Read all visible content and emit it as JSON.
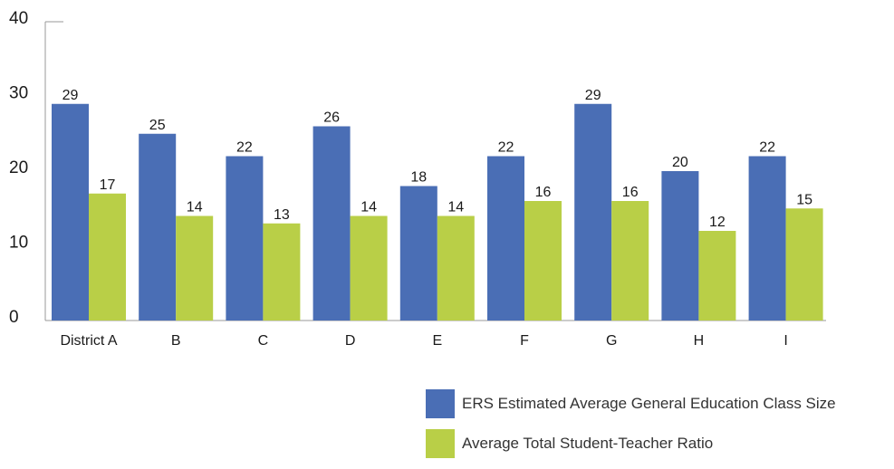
{
  "chart_data": {
    "type": "bar",
    "categories": [
      "District A",
      "B",
      "C",
      "D",
      "E",
      "F",
      "G",
      "H",
      "I"
    ],
    "series": [
      {
        "name": "ERS Estimated Average General Education Class Size",
        "values": [
          29,
          25,
          22,
          26,
          18,
          22,
          29,
          20,
          22
        ],
        "color": "#4a6eb5"
      },
      {
        "name": "Average Total Student-Teacher Ratio",
        "values": [
          17,
          14,
          13,
          14,
          14,
          16,
          16,
          12,
          15
        ],
        "color": "#b9cf47"
      }
    ],
    "yticks": [
      0,
      10,
      20,
      30,
      40
    ],
    "ylim": [
      0,
      40
    ],
    "title": "",
    "xlabel": "",
    "ylabel": "",
    "legend": "bottom-right",
    "grid": false
  }
}
